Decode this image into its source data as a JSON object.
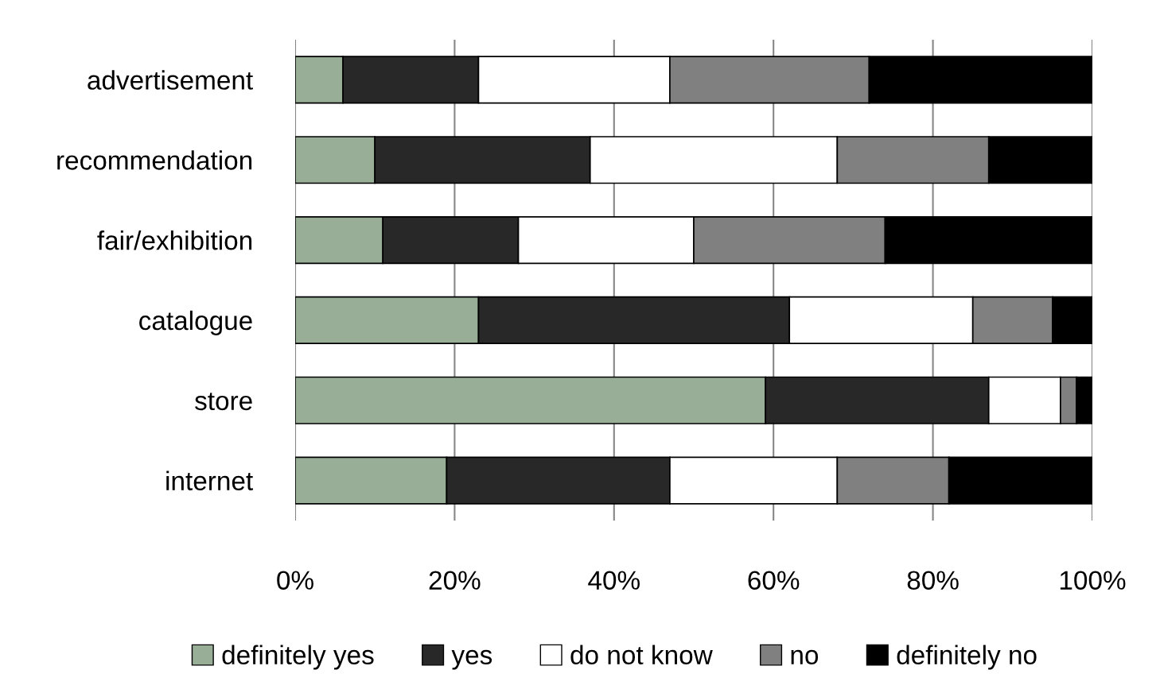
{
  "chart_data": {
    "type": "bar",
    "orientation": "horizontal",
    "stacked": true,
    "categories": [
      "advertisement",
      "recommendation",
      "fair/exhibition",
      "catalogue",
      "store",
      "internet"
    ],
    "series": [
      {
        "name": "definitely yes",
        "color": "#98ae97",
        "values": [
          6,
          10,
          11,
          23,
          59,
          19
        ]
      },
      {
        "name": "yes",
        "color": "#282828",
        "values": [
          17,
          27,
          17,
          39,
          28,
          28
        ]
      },
      {
        "name": "do not know",
        "color": "#ffffff",
        "values": [
          24,
          31,
          22,
          23,
          9,
          21
        ]
      },
      {
        "name": "no",
        "color": "#808080",
        "values": [
          25,
          19,
          24,
          10,
          2,
          14
        ]
      },
      {
        "name": "definitely no",
        "color": "#000000",
        "values": [
          28,
          13,
          26,
          5,
          2,
          18
        ]
      }
    ],
    "xlim": [
      0,
      100
    ],
    "xticks": [
      {
        "value": 0,
        "label": "0%"
      },
      {
        "value": 20,
        "label": "20%"
      },
      {
        "value": 40,
        "label": "40%"
      },
      {
        "value": 60,
        "label": "60%"
      },
      {
        "value": 80,
        "label": "80%"
      },
      {
        "value": 100,
        "label": "100%"
      }
    ],
    "grid": "x",
    "legend": "bottom"
  }
}
